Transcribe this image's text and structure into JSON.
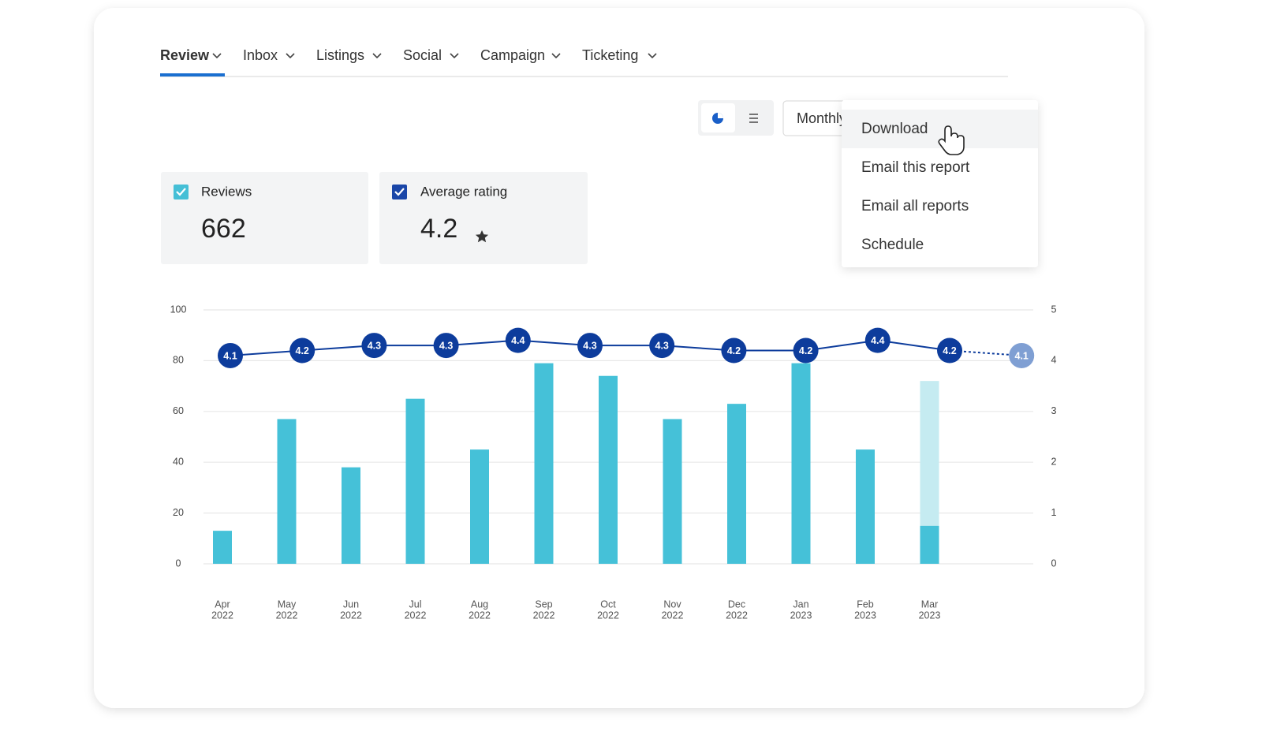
{
  "tabs": [
    "Review",
    "Inbox",
    "Listings",
    "Social",
    "Campaign",
    "Ticketing"
  ],
  "toolbar": {
    "period": "Monthly"
  },
  "menu": [
    "Download",
    "Email this report",
    "Email all reports",
    "Schedule"
  ],
  "cards": [
    {
      "label": "Reviews",
      "value": 662
    },
    {
      "label": "Average rating",
      "value": 4.2
    }
  ],
  "chart_data": {
    "type": "bar",
    "categories": [
      {
        "month": "Apr",
        "year": "2022"
      },
      {
        "month": "May",
        "year": "2022"
      },
      {
        "month": "Jun",
        "year": "2022"
      },
      {
        "month": "Jul",
        "year": "2022"
      },
      {
        "month": "Aug",
        "year": "2022"
      },
      {
        "month": "Sep",
        "year": "2022"
      },
      {
        "month": "Oct",
        "year": "2022"
      },
      {
        "month": "Nov",
        "year": "2022"
      },
      {
        "month": "Dec",
        "year": "2022"
      },
      {
        "month": "Jan",
        "year": "2023"
      },
      {
        "month": "Feb",
        "year": "2023"
      },
      {
        "month": "Mar",
        "year": "2023"
      }
    ],
    "series": [
      {
        "color": "#45c1d8",
        "values": [
          13,
          57,
          38,
          65,
          45,
          79,
          74,
          57,
          63,
          79,
          45,
          15
        ]
      },
      {
        "color": "#c5ebf1",
        "values": [
          null,
          null,
          null,
          null,
          null,
          null,
          null,
          null,
          null,
          null,
          null,
          57
        ]
      },
      {
        "color": "#0d3c9c",
        "projected_color": "#7f9fd3",
        "dashed_last": true,
        "axis": "y2",
        "values": [
          4.1,
          4.2,
          4.3,
          4.3,
          4.4,
          4.3,
          4.3,
          4.2,
          4.2,
          4.4,
          4.2,
          4.1
        ]
      }
    ],
    "ylim": [
      0,
      100
    ],
    "yticks": [
      0,
      20,
      40,
      60,
      80,
      100
    ],
    "y2lim": [
      0,
      5
    ],
    "y2ticks": [
      0,
      1,
      2,
      3,
      4,
      5
    ],
    "grid": true
  }
}
